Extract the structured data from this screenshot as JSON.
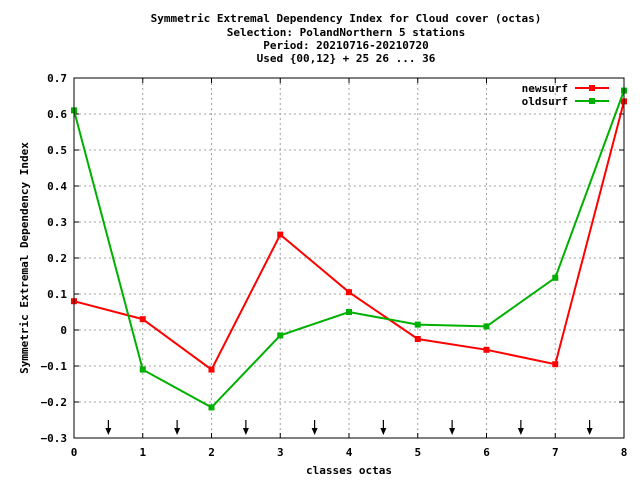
{
  "chart_data": {
    "type": "line",
    "title_lines": [
      "Symmetric Extremal Dependency Index  for Cloud cover (octas)",
      "Selection: PolandNorthern      5 stations",
      "Period: 20210716-20210720",
      "Used {00,12} + 25 26 ... 36"
    ],
    "xlabel": "classes octas",
    "ylabel": "Symmetric Extremal Dependency Index",
    "xlim": [
      0,
      8
    ],
    "ylim": [
      -0.3,
      0.7
    ],
    "x_ticks": [
      "0",
      "1",
      "2",
      "3",
      "4",
      "5",
      "6",
      "7",
      "8"
    ],
    "y_ticks": [
      "0.7",
      "0.6",
      "0.5",
      "0.4",
      "0.3",
      "0.2",
      "0.1",
      "0",
      "−0.1",
      "−0.2",
      "−0.3"
    ],
    "grid": true,
    "legend_position": "top-right",
    "x": [
      0,
      1,
      2,
      3,
      4,
      5,
      6,
      7,
      8
    ],
    "series": [
      {
        "name": "newsurf",
        "color": "#ff0000",
        "values": [
          0.08,
          0.03,
          -0.11,
          0.265,
          0.105,
          -0.025,
          -0.055,
          -0.095,
          0.635
        ]
      },
      {
        "name": "oldsurf",
        "color": "#00b000",
        "values": [
          0.61,
          -0.11,
          -0.215,
          -0.015,
          0.05,
          0.015,
          0.01,
          0.145,
          0.665
        ]
      }
    ],
    "arrow_markers_x": [
      0.5,
      1.5,
      2.5,
      3.5,
      4.5,
      5.5,
      6.5,
      7.5
    ]
  }
}
